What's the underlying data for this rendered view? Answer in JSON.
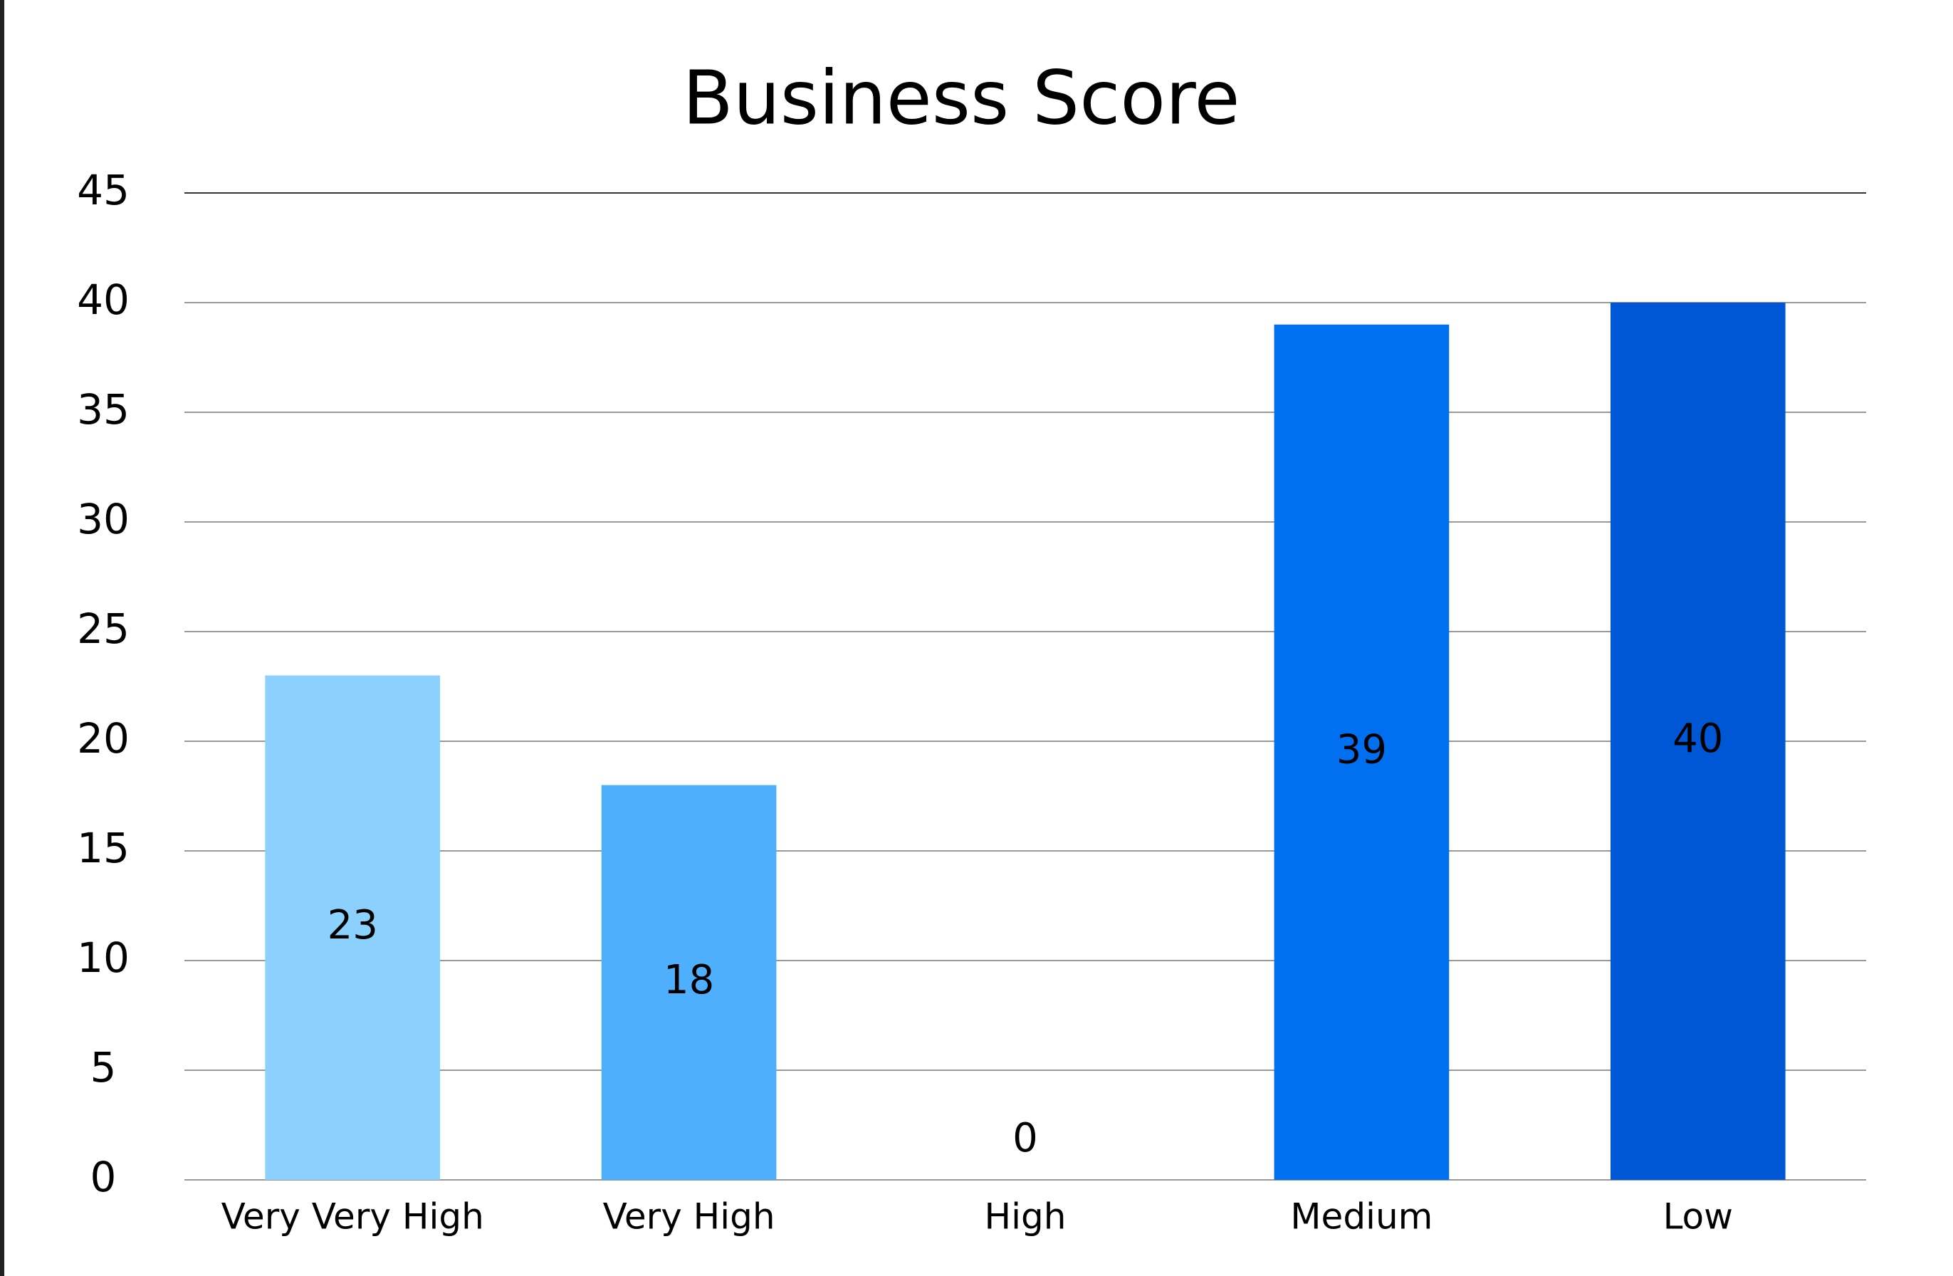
{
  "chart_data": {
    "type": "bar",
    "title": "Business Score",
    "categories": [
      "Very Very High",
      "Very High",
      "High",
      "Medium",
      "Low"
    ],
    "values": [
      23,
      18,
      0,
      39,
      40
    ],
    "colors": [
      "#8cd1fd",
      "#4eb0fd",
      "#2f8ff7",
      "#0070f0",
      "#0057d6"
    ],
    "ylim": [
      0,
      45
    ],
    "yticks": [
      0,
      5,
      10,
      15,
      20,
      25,
      30,
      35,
      40,
      45
    ],
    "grid": true
  }
}
